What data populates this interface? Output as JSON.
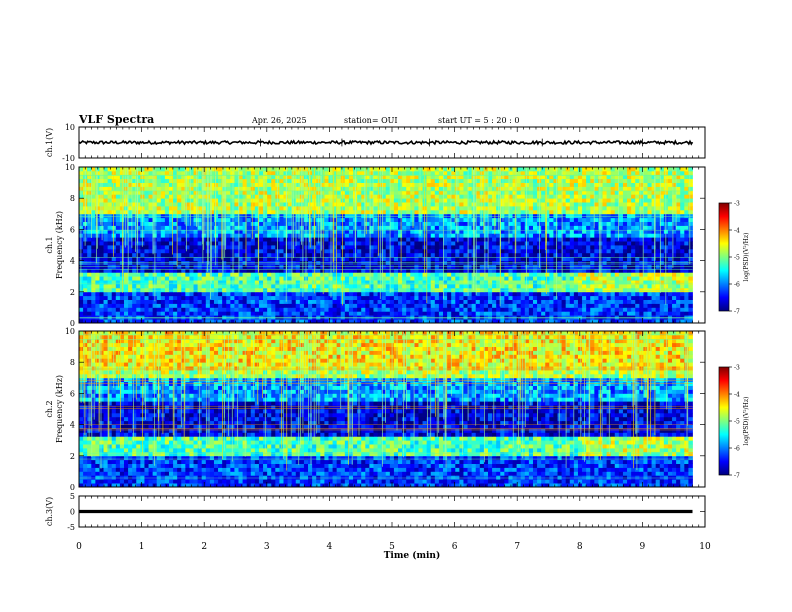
{
  "header": {
    "title": "VLF Spectra",
    "date": "Apr. 26, 2025",
    "station": "station= OUI",
    "start": "start  UT  =   5  : 20 : 0"
  },
  "chart_data": [
    {
      "type": "line",
      "name": "ch1-waveform",
      "ylabel": "ch.1(V)",
      "ylim": [
        -10,
        10
      ],
      "y_ticks": [
        "10",
        "-10"
      ],
      "xlim": [
        0,
        10
      ],
      "baseline": 0,
      "noise_band": [
        -1,
        1
      ]
    },
    {
      "type": "heatmap",
      "name": "ch1-spectrogram",
      "ylabel": "ch.1\nFrequency (kHz)",
      "ylim": [
        0,
        10
      ],
      "y_ticks": [
        "0",
        "2",
        "4",
        "6",
        "8",
        "10"
      ],
      "xlim": [
        0,
        10
      ],
      "data_end_min": 9.8,
      "colorbar": {
        "label": "log(PSD)(V²/Hz)",
        "range": [
          -7,
          -3
        ],
        "ticks": [
          "-3",
          "-4",
          "-5",
          "-6",
          "-7"
        ]
      }
    },
    {
      "type": "heatmap",
      "name": "ch2-spectrogram",
      "ylabel": "ch.2\nFrequency (kHz)",
      "ylim": [
        0,
        10
      ],
      "y_ticks": [
        "0",
        "2",
        "4",
        "6",
        "8",
        "10"
      ],
      "xlim": [
        0,
        10
      ],
      "data_end_min": 9.8,
      "colorbar": {
        "label": "log(PSD)(V²/Hz)",
        "range": [
          -7,
          -3
        ],
        "ticks": [
          "-3",
          "-4",
          "-5",
          "-6",
          "-7"
        ]
      }
    },
    {
      "type": "line",
      "name": "ch3-waveform",
      "ylabel": "ch.3(V)",
      "ylim": [
        -5,
        5
      ],
      "y_ticks": [
        "5",
        "0",
        "-5"
      ],
      "xlim": [
        0,
        10
      ],
      "baseline": 0
    }
  ],
  "xaxis": {
    "label": "Time  (min)",
    "ticks": [
      "0",
      "1",
      "2",
      "3",
      "4",
      "5",
      "6",
      "7",
      "8",
      "9",
      "10"
    ]
  },
  "colors": {
    "jet": [
      "#00007f",
      "#0000ff",
      "#007fff",
      "#00ffff",
      "#7fff7f",
      "#ffff00",
      "#ff7f00",
      "#ff0000",
      "#7f0000"
    ]
  }
}
